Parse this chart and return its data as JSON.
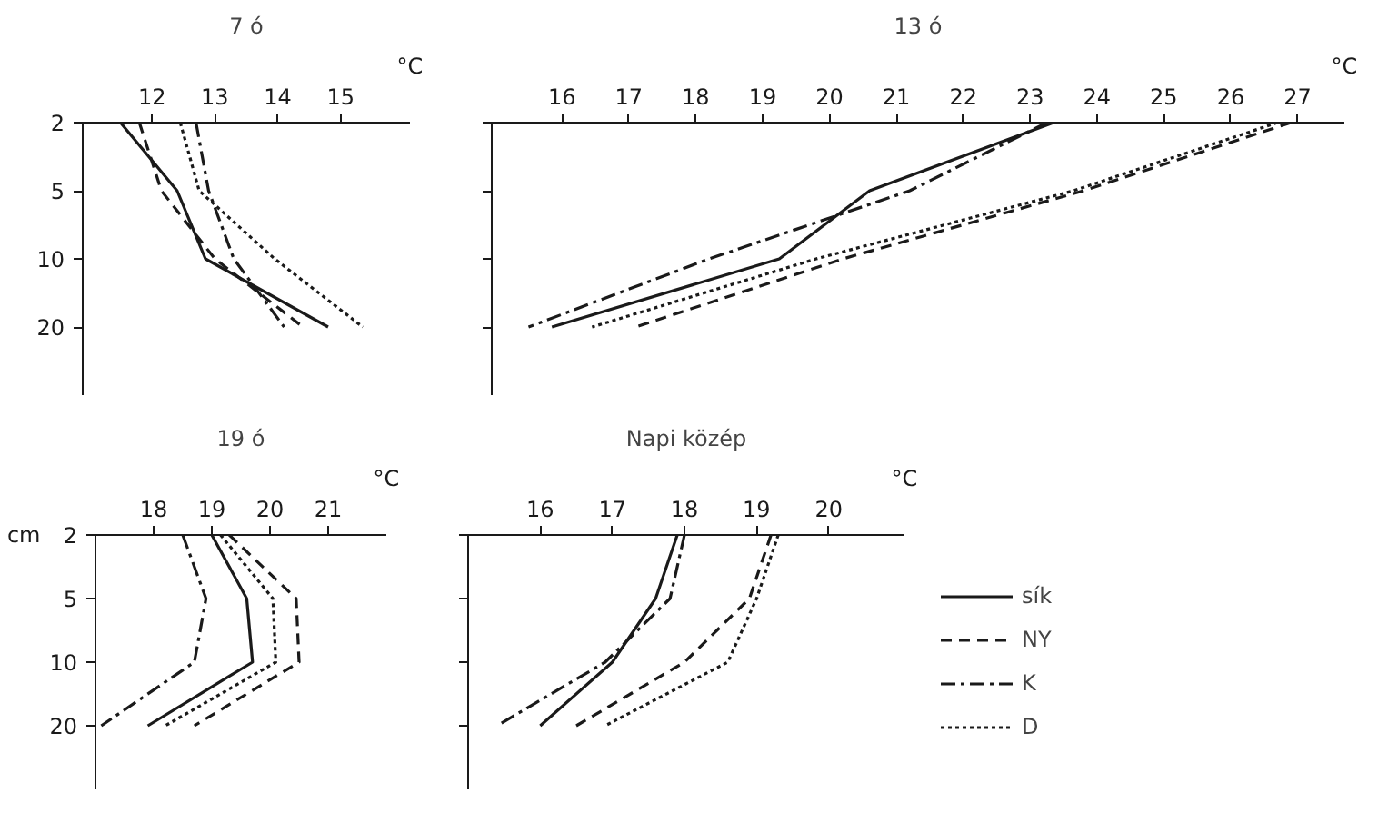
{
  "chart_data": [
    {
      "type": "line",
      "title": "7 ó",
      "xlabel": "°C",
      "orientation": "horizontal",
      "categories": [
        "2",
        "5",
        "10",
        "20"
      ],
      "xlim": [
        10.9,
        16.1
      ],
      "xticks": [
        12,
        13,
        14,
        15
      ],
      "series": [
        {
          "color": "#1a1a1a",
          "line_style": "solid",
          "values": [
            11.5,
            12.4,
            12.85,
            14.8
          ]
        },
        {
          "color": "#1a1a1a",
          "line_style": "dashed",
          "values": [
            11.8,
            12.15,
            13.0,
            14.4
          ]
        },
        {
          "color": "#1a1a1a",
          "line_style": "dashdot",
          "values": [
            12.7,
            12.9,
            13.3,
            14.1
          ]
        },
        {
          "color": "#1a1a1a",
          "line_style": "dotted",
          "values": [
            12.45,
            12.75,
            13.95,
            15.35
          ]
        }
      ]
    },
    {
      "type": "line",
      "title": "13 ó",
      "xlabel": "°C",
      "orientation": "horizontal",
      "categories": [
        "2",
        "5",
        "10",
        "20"
      ],
      "xlim": [
        14.95,
        27.7
      ],
      "xticks": [
        16,
        17,
        18,
        19,
        20,
        21,
        22,
        23,
        24,
        25,
        26,
        27
      ],
      "tick_labels": "x",
      "series": [
        {
          "color": "#1a1a1a",
          "line_style": "solid",
          "values": [
            23.35,
            20.6,
            19.25,
            15.85
          ]
        },
        {
          "color": "#1a1a1a",
          "line_style": "dashed",
          "values": [
            26.9,
            23.8,
            20.2,
            17.1
          ]
        },
        {
          "color": "#1a1a1a",
          "line_style": "dashdot",
          "values": [
            23.25,
            21.2,
            18.2,
            15.5
          ]
        },
        {
          "color": "#1a1a1a",
          "line_style": "dotted",
          "values": [
            26.7,
            23.65,
            19.8,
            16.45
          ]
        }
      ]
    },
    {
      "type": "line",
      "title": "19 ó",
      "xlabel": "°C",
      "ylabel": "cm",
      "orientation": "horizontal",
      "categories": [
        "2",
        "5",
        "10",
        "20"
      ],
      "xlim": [
        17.0,
        22.0
      ],
      "xticks": [
        18,
        19,
        20,
        21
      ],
      "series": [
        {
          "color": "#1a1a1a",
          "line_style": "solid",
          "values": [
            19.0,
            19.6,
            19.7,
            17.9
          ]
        },
        {
          "color": "#1a1a1a",
          "line_style": "dashed",
          "values": [
            19.3,
            20.45,
            20.5,
            18.7
          ]
        },
        {
          "color": "#1a1a1a",
          "line_style": "dashdot",
          "values": [
            18.5,
            18.9,
            18.7,
            17.1
          ]
        },
        {
          "color": "#1a1a1a",
          "line_style": "dotted",
          "values": [
            19.15,
            20.05,
            20.1,
            18.2
          ]
        }
      ]
    },
    {
      "type": "line",
      "title": "Napi közép",
      "xlabel": "°C",
      "orientation": "horizontal",
      "categories": [
        "2",
        "5",
        "10",
        "20"
      ],
      "xlim": [
        15.0,
        21.05
      ],
      "xticks": [
        16,
        17,
        18,
        19,
        20
      ],
      "tick_labels": "x",
      "legend": "right",
      "series": [
        {
          "name": "sík",
          "color": "#1a1a1a",
          "line_style": "solid",
          "values": [
            17.9,
            17.6,
            17.0,
            16.0
          ]
        },
        {
          "name": "NY",
          "color": "#1a1a1a",
          "line_style": "dashed",
          "values": [
            19.2,
            18.9,
            18.0,
            16.5
          ]
        },
        {
          "name": "K",
          "color": "#1a1a1a",
          "line_style": "dashdot",
          "values": [
            18.0,
            17.8,
            16.9,
            15.4
          ]
        },
        {
          "name": "D",
          "color": "#1a1a1a",
          "line_style": "dotted",
          "values": [
            19.3,
            19.0,
            18.6,
            16.9
          ]
        }
      ]
    }
  ]
}
